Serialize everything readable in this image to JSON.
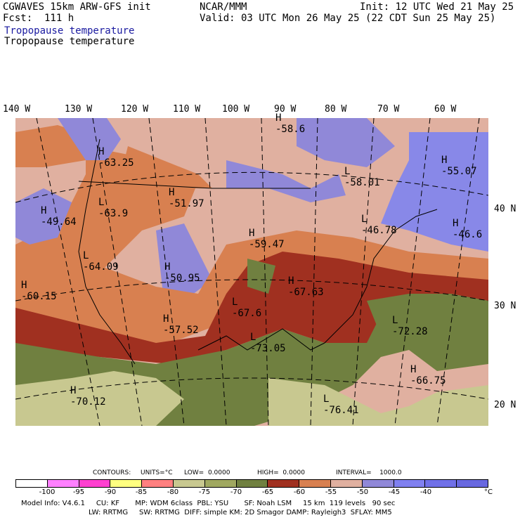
{
  "header": {
    "model": "CGWAVES 15km ARW-GFS init",
    "fcst": "Fcst:  111 h",
    "org": "NCAR/MMM",
    "init": "Init: 12 UTC Wed 21 May 25",
    "valid": "Valid: 03 UTC Mon 26 May 25 (22 CDT Sun 25 May 25)",
    "field_title": "Tropopause temperature",
    "field_subtitle": "Tropopause temperature"
  },
  "lon_labels": [
    "140 W",
    "130 W",
    "120 W",
    "110 W",
    "100 W",
    "90 W",
    "80 W",
    "70 W",
    "60 W"
  ],
  "lat_labels": [
    "40 N",
    "30 N",
    "20 N"
  ],
  "pressure_labels": [
    {
      "kind": "H",
      "value": "-63.25"
    },
    {
      "kind": "H",
      "value": "-58.6"
    },
    {
      "kind": "L",
      "value": "-58.01"
    },
    {
      "kind": "H",
      "value": "-55.07"
    },
    {
      "kind": "H",
      "value": "-49.64"
    },
    {
      "kind": "L",
      "value": "-63.9"
    },
    {
      "kind": "H",
      "value": "-51.97"
    },
    {
      "kind": "H",
      "value": "-59.47"
    },
    {
      "kind": "L",
      "value": "-46.78"
    },
    {
      "kind": "H",
      "value": "-46.6"
    },
    {
      "kind": "L",
      "value": "-64.09"
    },
    {
      "kind": "H",
      "value": "-50.95"
    },
    {
      "kind": "H",
      "value": "-60.15"
    },
    {
      "kind": "H",
      "value": "-67.63"
    },
    {
      "kind": "L",
      "value": "-67.6"
    },
    {
      "kind": "H",
      "value": "-57.52"
    },
    {
      "kind": "L",
      "value": "-73.05"
    },
    {
      "kind": "L",
      "value": "-72.28"
    },
    {
      "kind": "H",
      "value": "-66.75"
    },
    {
      "kind": "H",
      "value": "-70.12"
    },
    {
      "kind": "L",
      "value": "-76.41"
    }
  ],
  "contour_info": {
    "contours": "CONTOURS:",
    "units": "UNITS=°C",
    "low": "LOW=  0.0000",
    "high": "HIGH=  0.0000",
    "interval": "INTERVAL=    1000.0"
  },
  "colorbar": {
    "colors": [
      "#ffffff",
      "#ff80ff",
      "#ff40d0",
      "#ffff80",
      "#ff8080",
      "#c8c890",
      "#a0a860",
      "#708040",
      "#a03020",
      "#d88050",
      "#e0b0a0",
      "#9088d8",
      "#8080f0",
      "#7070e8",
      "#6868e0"
    ],
    "ticks": [
      "-100",
      "-95",
      "-90",
      "-85",
      "-80",
      "-75",
      "-70",
      "-65",
      "-60",
      "-55",
      "-50",
      "-45",
      "-40"
    ],
    "unit": "°C"
  },
  "model_info": {
    "line1": "Model Info: V4.6.1     CU: KF       MP: WDM 6class  PBL: YSU       SF: Noah LSM     15 km  119 levels   90 sec",
    "line2": "LW: RRTMG     SW: RRTMG  DIFF: simple KM: 2D Smagor DAMP: Rayleigh3  SFLAY: MM5"
  }
}
